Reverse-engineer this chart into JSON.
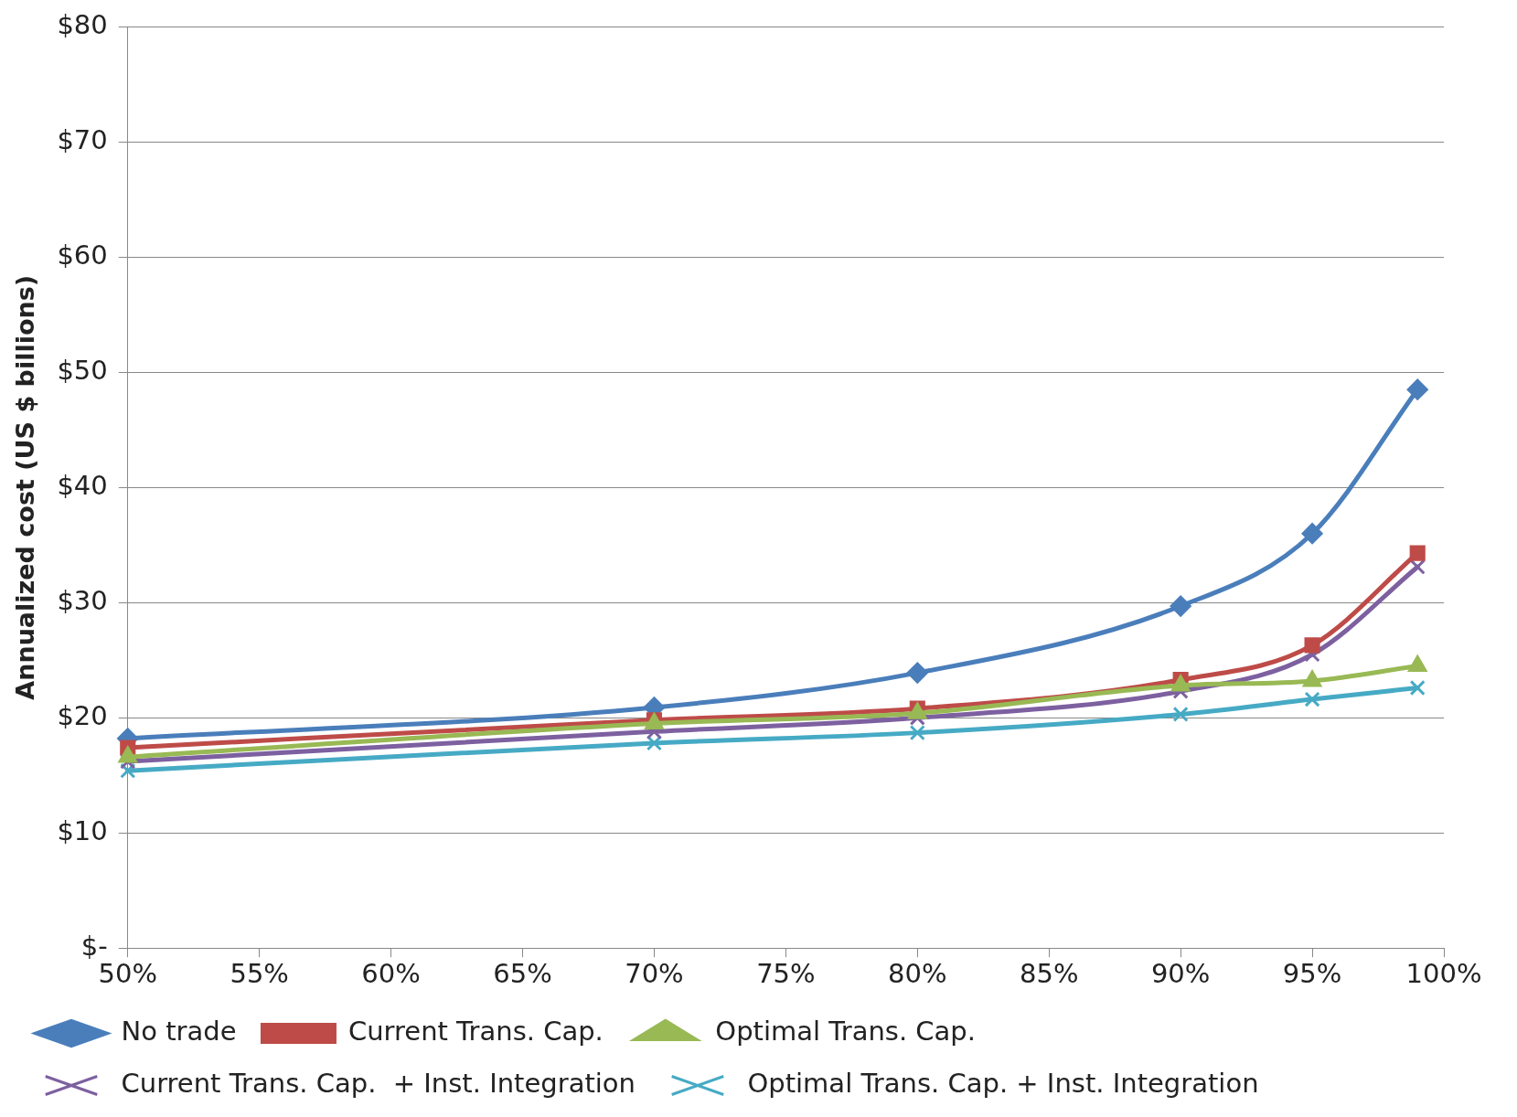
{
  "chart_data": {
    "type": "line",
    "ylabel": "Annualized cost (US $ billions)",
    "x": [
      50,
      70,
      80,
      90,
      95,
      99
    ],
    "xlim": [
      50,
      100
    ],
    "xticks": [
      {
        "value": 50,
        "label": "50%"
      },
      {
        "value": 55,
        "label": "55%"
      },
      {
        "value": 60,
        "label": "60%"
      },
      {
        "value": 65,
        "label": "65%"
      },
      {
        "value": 70,
        "label": "70%"
      },
      {
        "value": 75,
        "label": "75%"
      },
      {
        "value": 80,
        "label": "80%"
      },
      {
        "value": 85,
        "label": "85%"
      },
      {
        "value": 90,
        "label": "90%"
      },
      {
        "value": 95,
        "label": "95%"
      },
      {
        "value": 100,
        "label": "100%"
      }
    ],
    "ylim": [
      0,
      80
    ],
    "yticks": [
      {
        "value": 0,
        "label": "$-"
      },
      {
        "value": 10,
        "label": "$10"
      },
      {
        "value": 20,
        "label": "$20"
      },
      {
        "value": 30,
        "label": "$30"
      },
      {
        "value": 40,
        "label": "$40"
      },
      {
        "value": 50,
        "label": "$50"
      },
      {
        "value": 60,
        "label": "$60"
      },
      {
        "value": 70,
        "label": "$70"
      },
      {
        "value": 80,
        "label": "$80"
      }
    ],
    "grid": "y",
    "legend": "bottom",
    "series": [
      {
        "name": "No trade",
        "color": "#4a7ebb",
        "marker": "diamond",
        "values": [
          18.2,
          20.9,
          23.9,
          29.7,
          36.0,
          48.5
        ]
      },
      {
        "name": "Current Trans. Cap.",
        "color": "#be4b48",
        "marker": "square",
        "values": [
          17.4,
          19.8,
          20.8,
          23.3,
          26.3,
          34.3
        ]
      },
      {
        "name": "Optimal Trans. Cap.",
        "color": "#98b954",
        "marker": "triangle",
        "values": [
          16.6,
          19.5,
          20.4,
          22.8,
          23.2,
          24.5
        ]
      },
      {
        "name": "Current Trans. Cap.  + Inst. Integration",
        "color": "#7d60a0",
        "marker": "cross",
        "values": [
          16.2,
          18.8,
          20.0,
          22.3,
          25.5,
          33.1
        ]
      },
      {
        "name": "Optimal Trans. Cap. + Inst. Integration",
        "color": "#46aac5",
        "marker": "cross",
        "values": [
          15.4,
          17.8,
          18.7,
          20.3,
          21.6,
          22.6
        ]
      }
    ]
  }
}
